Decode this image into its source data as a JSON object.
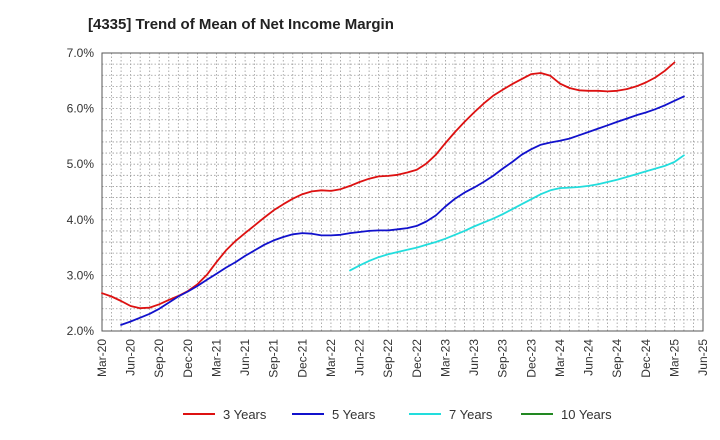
{
  "title": "[4335]  Trend of Mean of Net Income Margin",
  "chart_data": {
    "type": "line",
    "title": "[4335]  Trend of Mean of Net Income Margin",
    "xlabel": "",
    "ylabel": "",
    "ylim": [
      2.0,
      7.0
    ],
    "y_ticks": [
      "2.0%",
      "3.0%",
      "4.0%",
      "5.0%",
      "6.0%",
      "7.0%"
    ],
    "y_tick_values": [
      2.0,
      3.0,
      4.0,
      5.0,
      6.0,
      7.0
    ],
    "x_start": "Mar-20",
    "x_end": "Jun-25",
    "x_ticks": [
      "Mar-20",
      "Jun-20",
      "Sep-20",
      "Dec-20",
      "Mar-21",
      "Jun-21",
      "Sep-21",
      "Dec-21",
      "Mar-22",
      "Jun-22",
      "Sep-22",
      "Dec-22",
      "Mar-23",
      "Jun-23",
      "Sep-23",
      "Dec-23",
      "Mar-24",
      "Jun-24",
      "Sep-24",
      "Dec-24",
      "Mar-25",
      "Jun-25"
    ],
    "grid": true,
    "legend_position": "bottom",
    "series": [
      {
        "name": "3 Years",
        "color": "#dd1111",
        "points": [
          [
            "Mar-20",
            2.68
          ],
          [
            "Apr-20",
            2.62
          ],
          [
            "May-20",
            2.54
          ],
          [
            "Jun-20",
            2.45
          ],
          [
            "Jul-20",
            2.41
          ],
          [
            "Aug-20",
            2.42
          ],
          [
            "Sep-20",
            2.48
          ],
          [
            "Oct-20",
            2.56
          ],
          [
            "Nov-20",
            2.63
          ],
          [
            "Dec-20",
            2.72
          ],
          [
            "Jan-21",
            2.84
          ],
          [
            "Feb-21",
            3.01
          ],
          [
            "Mar-21",
            3.24
          ],
          [
            "Apr-21",
            3.45
          ],
          [
            "May-21",
            3.62
          ],
          [
            "Jun-21",
            3.76
          ],
          [
            "Jul-21",
            3.9
          ],
          [
            "Aug-21",
            4.04
          ],
          [
            "Sep-21",
            4.17
          ],
          [
            "Oct-21",
            4.28
          ],
          [
            "Nov-21",
            4.38
          ],
          [
            "Dec-21",
            4.46
          ],
          [
            "Jan-22",
            4.51
          ],
          [
            "Feb-22",
            4.53
          ],
          [
            "Mar-22",
            4.52
          ],
          [
            "Apr-22",
            4.55
          ],
          [
            "May-22",
            4.61
          ],
          [
            "Jun-22",
            4.68
          ],
          [
            "Jul-22",
            4.74
          ],
          [
            "Aug-22",
            4.78
          ],
          [
            "Sep-22",
            4.79
          ],
          [
            "Oct-22",
            4.81
          ],
          [
            "Nov-22",
            4.85
          ],
          [
            "Dec-22",
            4.9
          ],
          [
            "Jan-23",
            5.01
          ],
          [
            "Feb-23",
            5.17
          ],
          [
            "Mar-23",
            5.38
          ],
          [
            "Apr-23",
            5.58
          ],
          [
            "May-23",
            5.76
          ],
          [
            "Jun-23",
            5.93
          ],
          [
            "Jul-23",
            6.09
          ],
          [
            "Aug-23",
            6.23
          ],
          [
            "Sep-23",
            6.34
          ],
          [
            "Oct-23",
            6.44
          ],
          [
            "Nov-23",
            6.53
          ],
          [
            "Dec-23",
            6.62
          ],
          [
            "Jan-24",
            6.64
          ],
          [
            "Feb-24",
            6.59
          ],
          [
            "Mar-24",
            6.45
          ],
          [
            "Apr-24",
            6.37
          ],
          [
            "May-24",
            6.33
          ],
          [
            "Jun-24",
            6.32
          ],
          [
            "Jul-24",
            6.32
          ],
          [
            "Aug-24",
            6.31
          ],
          [
            "Sep-24",
            6.32
          ],
          [
            "Oct-24",
            6.35
          ],
          [
            "Nov-24",
            6.4
          ],
          [
            "Dec-24",
            6.47
          ],
          [
            "Jan-25",
            6.56
          ],
          [
            "Feb-25",
            6.68
          ],
          [
            "Mar-25",
            6.83
          ]
        ]
      },
      {
        "name": "5 Years",
        "color": "#1111cc",
        "points": [
          [
            "May-20",
            2.11
          ],
          [
            "Jun-20",
            2.17
          ],
          [
            "Jul-20",
            2.24
          ],
          [
            "Aug-20",
            2.31
          ],
          [
            "Sep-20",
            2.4
          ],
          [
            "Oct-20",
            2.51
          ],
          [
            "Nov-20",
            2.62
          ],
          [
            "Dec-20",
            2.71
          ],
          [
            "Jan-21",
            2.81
          ],
          [
            "Feb-21",
            2.92
          ],
          [
            "Mar-21",
            3.03
          ],
          [
            "Apr-21",
            3.14
          ],
          [
            "May-21",
            3.24
          ],
          [
            "Jun-21",
            3.35
          ],
          [
            "Jul-21",
            3.45
          ],
          [
            "Aug-21",
            3.55
          ],
          [
            "Sep-21",
            3.63
          ],
          [
            "Oct-21",
            3.69
          ],
          [
            "Nov-21",
            3.74
          ],
          [
            "Dec-21",
            3.76
          ],
          [
            "Jan-22",
            3.75
          ],
          [
            "Feb-22",
            3.72
          ],
          [
            "Mar-22",
            3.72
          ],
          [
            "Apr-22",
            3.73
          ],
          [
            "May-22",
            3.76
          ],
          [
            "Jun-22",
            3.78
          ],
          [
            "Jul-22",
            3.8
          ],
          [
            "Aug-22",
            3.81
          ],
          [
            "Sep-22",
            3.81
          ],
          [
            "Oct-22",
            3.83
          ],
          [
            "Nov-22",
            3.85
          ],
          [
            "Dec-22",
            3.89
          ],
          [
            "Jan-23",
            3.97
          ],
          [
            "Feb-23",
            4.08
          ],
          [
            "Mar-23",
            4.24
          ],
          [
            "Apr-23",
            4.38
          ],
          [
            "May-23",
            4.49
          ],
          [
            "Jun-23",
            4.58
          ],
          [
            "Jul-23",
            4.68
          ],
          [
            "Aug-23",
            4.79
          ],
          [
            "Sep-23",
            4.92
          ],
          [
            "Oct-23",
            5.04
          ],
          [
            "Nov-23",
            5.17
          ],
          [
            "Dec-23",
            5.27
          ],
          [
            "Jan-24",
            5.35
          ],
          [
            "Feb-24",
            5.39
          ],
          [
            "Mar-24",
            5.42
          ],
          [
            "Apr-24",
            5.46
          ],
          [
            "May-24",
            5.52
          ],
          [
            "Jun-24",
            5.58
          ],
          [
            "Jul-24",
            5.64
          ],
          [
            "Aug-24",
            5.7
          ],
          [
            "Sep-24",
            5.76
          ],
          [
            "Oct-24",
            5.82
          ],
          [
            "Nov-24",
            5.88
          ],
          [
            "Dec-24",
            5.93
          ],
          [
            "Jan-25",
            5.99
          ],
          [
            "Feb-25",
            6.06
          ],
          [
            "Mar-25",
            6.14
          ],
          [
            "Apr-25",
            6.22
          ]
        ]
      },
      {
        "name": "7 Years",
        "color": "#22dddd",
        "points": [
          [
            "May-22",
            3.09
          ],
          [
            "Jun-22",
            3.18
          ],
          [
            "Jul-22",
            3.26
          ],
          [
            "Aug-22",
            3.33
          ],
          [
            "Sep-22",
            3.38
          ],
          [
            "Oct-22",
            3.42
          ],
          [
            "Nov-22",
            3.46
          ],
          [
            "Dec-22",
            3.5
          ],
          [
            "Jan-23",
            3.55
          ],
          [
            "Feb-23",
            3.6
          ],
          [
            "Mar-23",
            3.66
          ],
          [
            "Apr-23",
            3.73
          ],
          [
            "May-23",
            3.8
          ],
          [
            "Jun-23",
            3.88
          ],
          [
            "Jul-23",
            3.95
          ],
          [
            "Aug-23",
            4.02
          ],
          [
            "Sep-23",
            4.1
          ],
          [
            "Oct-23",
            4.19
          ],
          [
            "Nov-23",
            4.28
          ],
          [
            "Dec-23",
            4.37
          ],
          [
            "Jan-24",
            4.46
          ],
          [
            "Feb-24",
            4.53
          ],
          [
            "Mar-24",
            4.57
          ],
          [
            "Apr-24",
            4.58
          ],
          [
            "May-24",
            4.59
          ],
          [
            "Jun-24",
            4.61
          ],
          [
            "Jul-24",
            4.64
          ],
          [
            "Aug-24",
            4.68
          ],
          [
            "Sep-24",
            4.72
          ],
          [
            "Oct-24",
            4.77
          ],
          [
            "Nov-24",
            4.82
          ],
          [
            "Dec-24",
            4.87
          ],
          [
            "Jan-25",
            4.92
          ],
          [
            "Feb-25",
            4.97
          ],
          [
            "Mar-25",
            5.04
          ],
          [
            "Apr-25",
            5.16
          ]
        ]
      },
      {
        "name": "10 Years",
        "color": "#228822",
        "points": []
      }
    ]
  }
}
